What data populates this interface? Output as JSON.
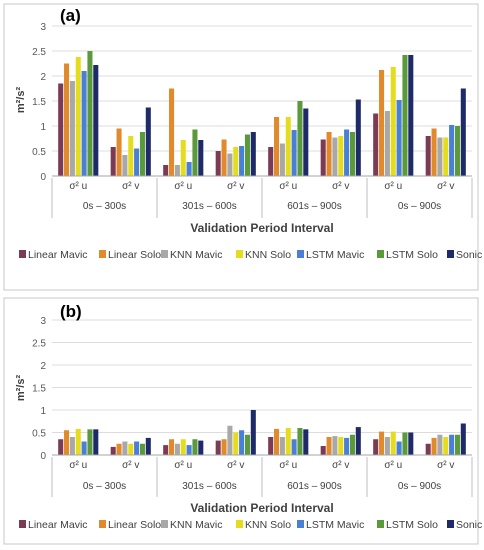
{
  "chart_data": [
    {
      "type": "bar",
      "panel_label": "(a)",
      "ylabel": "m²/s²",
      "xlabel": "Validation Period Interval",
      "ylim": [
        0,
        3
      ],
      "yticks": [
        "0",
        "0.5",
        "1",
        "1.5",
        "2",
        "2.5",
        "3"
      ],
      "grid": true,
      "legend_position": "bottom",
      "groups": [
        "0s – 300s",
        "301s – 600s",
        "601s – 900s",
        "0s – 900s"
      ],
      "categories": [
        "σ² u",
        "σ² v",
        "σ² u",
        "σ² v",
        "σ² u",
        "σ² v",
        "σ² u",
        "σ² v"
      ],
      "series": [
        {
          "name": "Linear Mavic",
          "color": "#7b3b54",
          "values": [
            1.85,
            0.58,
            0.22,
            0.5,
            0.58,
            0.73,
            1.25,
            0.8
          ]
        },
        {
          "name": "Linear Solo",
          "color": "#e08a2c",
          "values": [
            2.25,
            0.95,
            1.75,
            0.73,
            1.18,
            0.88,
            2.12,
            0.95
          ]
        },
        {
          "name": "KNN Mavic",
          "color": "#a8a8a8",
          "values": [
            1.9,
            0.42,
            0.22,
            0.45,
            0.65,
            0.77,
            1.3,
            0.77
          ]
        },
        {
          "name": "KNN Solo",
          "color": "#e6dc1e",
          "values": [
            2.38,
            0.8,
            0.72,
            0.58,
            1.18,
            0.8,
            2.18,
            0.77
          ]
        },
        {
          "name": "LSTM Mavic",
          "color": "#4a7fd6",
          "values": [
            2.1,
            0.55,
            0.28,
            0.6,
            0.92,
            0.93,
            1.52,
            1.02
          ]
        },
        {
          "name": "LSTM Solo",
          "color": "#5a9a3a",
          "values": [
            2.5,
            0.88,
            0.93,
            0.83,
            1.5,
            0.88,
            2.42,
            1.0
          ]
        },
        {
          "name": "Sonic",
          "color": "#1f2a68",
          "values": [
            2.22,
            1.37,
            0.72,
            0.88,
            1.35,
            1.53,
            2.42,
            1.75
          ]
        }
      ]
    },
    {
      "type": "bar",
      "panel_label": "(b)",
      "ylabel": "m²/s²",
      "xlabel": "Validation Period Interval",
      "ylim": [
        0,
        3
      ],
      "yticks": [
        "0",
        "0.5",
        "1",
        "1.5",
        "2",
        "2.5",
        "3"
      ],
      "grid": true,
      "legend_position": "bottom",
      "groups": [
        "0s – 300s",
        "301s – 600s",
        "601s – 900s",
        "0s – 900s"
      ],
      "categories": [
        "σ² u",
        "σ² v",
        "σ² u",
        "σ² v",
        "σ² u",
        "σ² v",
        "σ² u",
        "σ² v"
      ],
      "series": [
        {
          "name": "Linear Mavic",
          "color": "#7b3b54",
          "values": [
            0.35,
            0.18,
            0.22,
            0.32,
            0.4,
            0.2,
            0.35,
            0.25
          ]
        },
        {
          "name": "Linear Solo",
          "color": "#e08a2c",
          "values": [
            0.55,
            0.25,
            0.35,
            0.35,
            0.58,
            0.4,
            0.52,
            0.38
          ]
        },
        {
          "name": "KNN Mavic",
          "color": "#a8a8a8",
          "values": [
            0.4,
            0.3,
            0.25,
            0.65,
            0.4,
            0.42,
            0.4,
            0.45
          ]
        },
        {
          "name": "KNN Solo",
          "color": "#e6dc1e",
          "values": [
            0.58,
            0.25,
            0.35,
            0.5,
            0.6,
            0.4,
            0.52,
            0.4
          ]
        },
        {
          "name": "LSTM Mavic",
          "color": "#4a7fd6",
          "values": [
            0.3,
            0.3,
            0.22,
            0.55,
            0.35,
            0.38,
            0.3,
            0.45
          ]
        },
        {
          "name": "LSTM Solo",
          "color": "#5a9a3a",
          "values": [
            0.57,
            0.25,
            0.35,
            0.45,
            0.6,
            0.45,
            0.5,
            0.45
          ]
        },
        {
          "name": "Sonic",
          "color": "#1f2a68",
          "values": [
            0.57,
            0.38,
            0.32,
            1.0,
            0.57,
            0.62,
            0.5,
            0.7
          ]
        }
      ]
    }
  ]
}
